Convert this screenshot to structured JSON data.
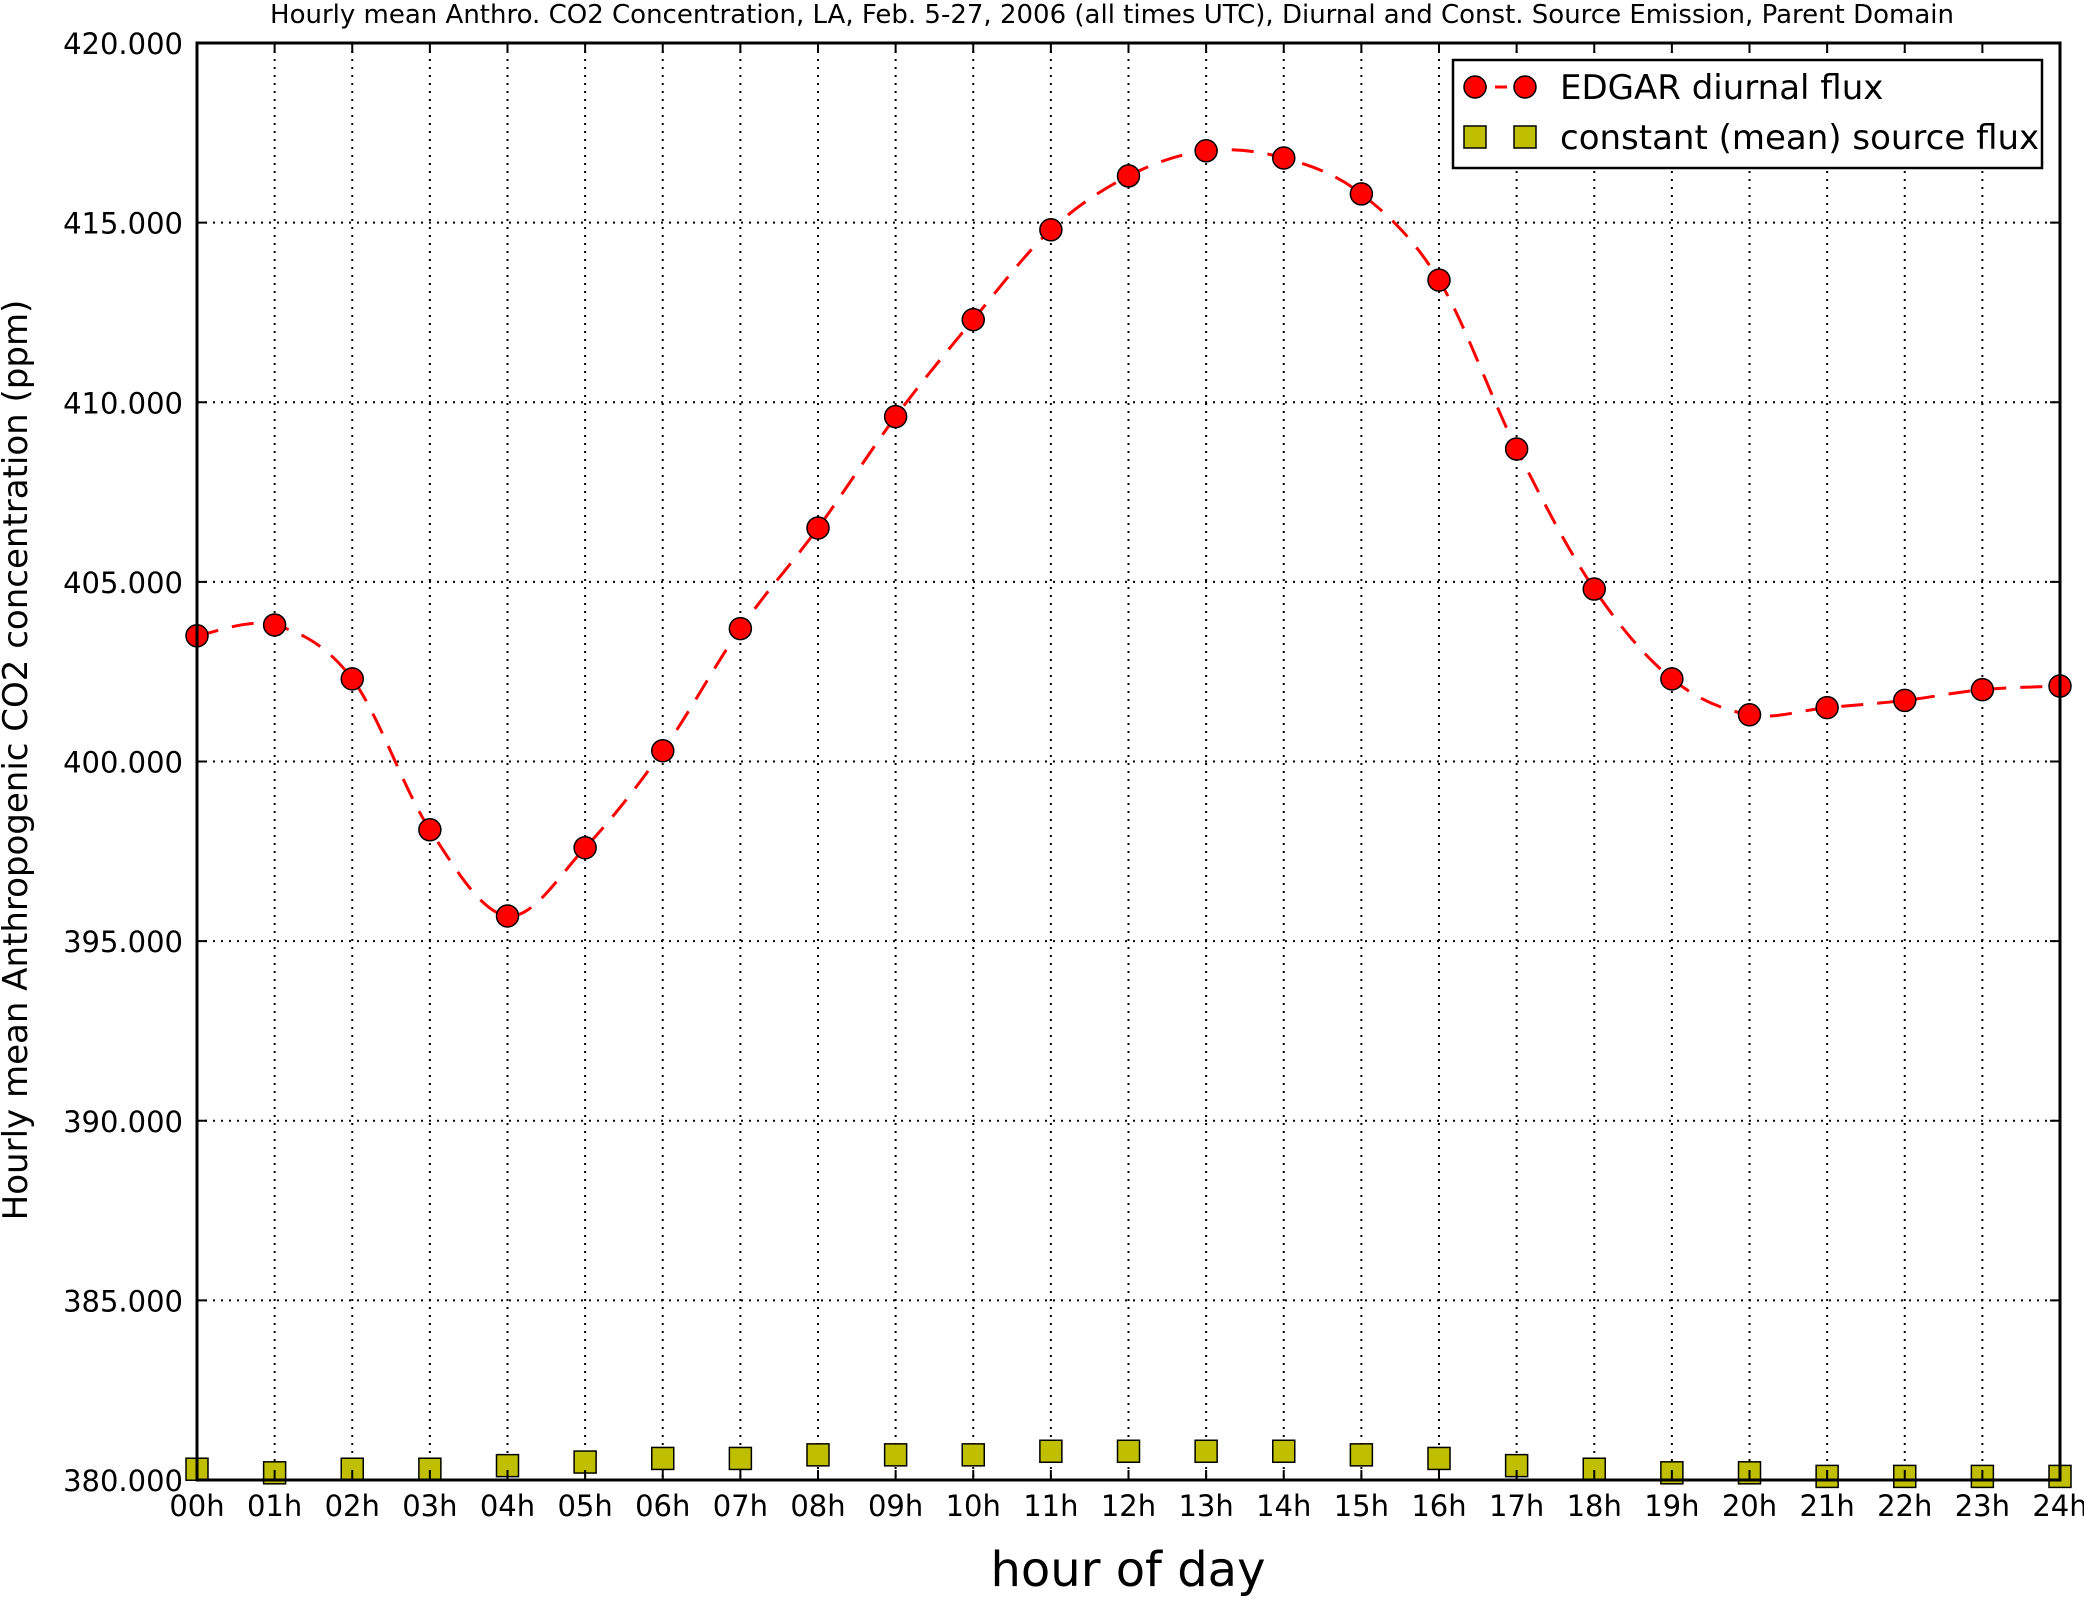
{
  "chart_data": {
    "type": "line",
    "title": "Hourly mean Anthro. CO2 Concentration, LA, Feb. 5-27, 2006 (all times UTC), Diurnal and Const. Source Emission, Parent Domain",
    "xlabel": "hour of day",
    "ylabel": "Hourly mean Anthropogenic CO2 concentration (ppm)",
    "categories": [
      "00h",
      "01h",
      "02h",
      "03h",
      "04h",
      "05h",
      "06h",
      "07h",
      "08h",
      "09h",
      "10h",
      "11h",
      "12h",
      "13h",
      "14h",
      "15h",
      "16h",
      "17h",
      "18h",
      "19h",
      "20h",
      "21h",
      "22h",
      "23h",
      "24h"
    ],
    "x": [
      0,
      1,
      2,
      3,
      4,
      5,
      6,
      7,
      8,
      9,
      10,
      11,
      12,
      13,
      14,
      15,
      16,
      17,
      18,
      19,
      20,
      21,
      22,
      23,
      24
    ],
    "xlim": [
      0,
      24
    ],
    "ylim": [
      380,
      420
    ],
    "yticks": [
      380,
      385,
      390,
      395,
      400,
      405,
      410,
      415,
      420
    ],
    "ytick_labels": [
      "380.000",
      "385.000",
      "390.000",
      "395.000",
      "400.000",
      "405.000",
      "410.000",
      "415.000",
      "420.000"
    ],
    "grid": true,
    "legend_position": "top-right",
    "series": [
      {
        "name": "EDGAR diurnal flux",
        "color": "#ff0000",
        "marker": "circle",
        "line": "dashed",
        "values": [
          403.5,
          403.8,
          402.3,
          398.1,
          395.7,
          397.6,
          400.3,
          403.7,
          406.5,
          409.6,
          412.3,
          414.8,
          416.3,
          417.0,
          416.8,
          415.8,
          413.4,
          408.7,
          404.8,
          402.3,
          401.3,
          401.5,
          401.7,
          402.0,
          402.1
        ]
      },
      {
        "name": "constant (mean) source flux",
        "color": "#bfbf00",
        "marker": "square",
        "line": "none",
        "values": [
          380.3,
          380.2,
          380.3,
          380.3,
          380.4,
          380.5,
          380.6,
          380.6,
          380.7,
          380.7,
          380.7,
          380.8,
          380.8,
          380.8,
          380.8,
          380.7,
          380.6,
          380.4,
          380.3,
          380.2,
          380.2,
          380.1,
          380.1,
          380.1,
          380.1
        ]
      }
    ]
  }
}
